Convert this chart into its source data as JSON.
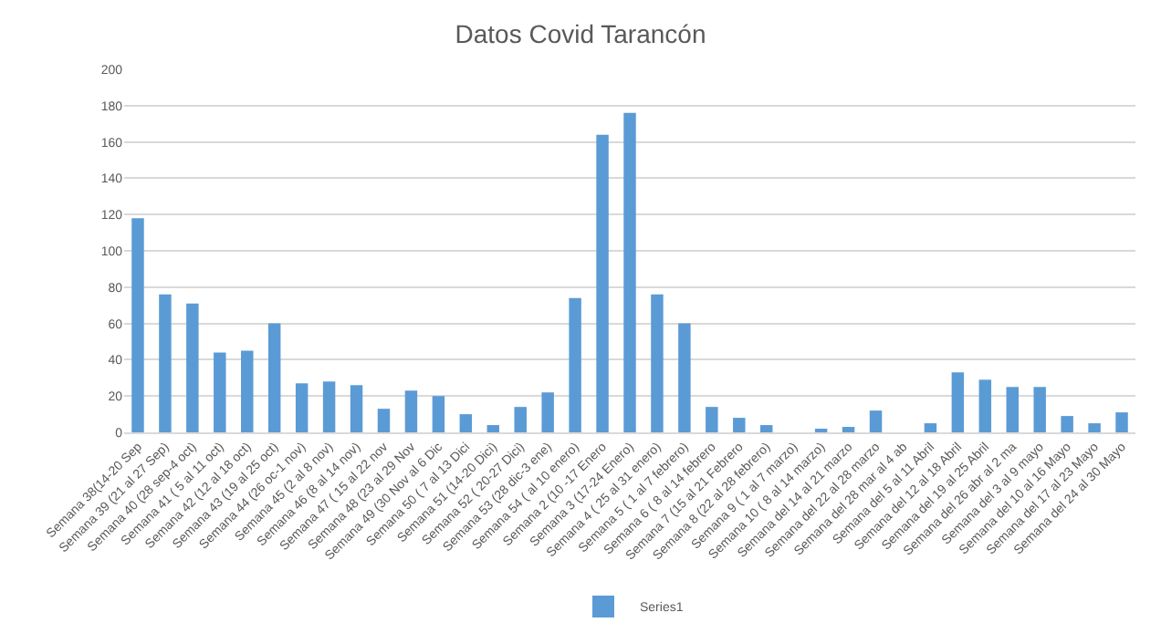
{
  "chart_data": {
    "type": "bar",
    "title": "Datos Covid Tarancón",
    "categories": [
      "Semana 38(14-20 Sep",
      "Semana 39 (21 al 27 Sep)",
      "Semana 40 (28 sep-4 oct)",
      "Semana 41 ( 5 al 11 oct)",
      "Semana 42 (12 al 18 oct)",
      "Semana 43 (19 al 25 oct)",
      "Semana 44 (26 oc-1 nov)",
      "Semana 45 (2 al 8 nov)",
      "Semana 46 (8 al 14 nov)",
      "Semana 47 ( 15 al 22 nov",
      "Semana 48 (23 al 29 Nov",
      "Semana 49 (30 Nov al 6 Dic",
      "Semana 50 ( 7 al 13 Dici",
      "Semana 51 (14-20 Dici)",
      "Semana 52 ( 20-27 Dici)",
      "Semana 53 (28 dic-3 ene)",
      "Semana 54 ( al 10 enero)",
      "Semana 2 (10 -17 Enero",
      "Semana 3 (17-24 Enero)",
      "Semana 4 ( 25 al 31 enero)",
      "Semana 5 ( 1 al 7 febrero)",
      "Semana 6 ( 8 al 14 febrero",
      "Semana 7 (15 al 21 Febrero",
      "Semana 8 (22 al 28 febrero)",
      "Semana 9 ( 1 al 7 marzo)",
      "Semana 10 ( 8 al 14 marzo)",
      "Semana del 14 al 21 marzo",
      "Semana del 22 al 28 marzo",
      "Semana del 28 mar al 4 ab",
      "Semana del 5 al 11 Abril",
      "Semana del 12 al 18 Abril",
      "Semana del 19 al 25 Abril",
      "Semana del 26 abr al 2 ma",
      "Semana del 3 al 9 mayo",
      "Semana del 10 al 16 Mayo",
      "Semana del 17 al 23 Mayo",
      "Semana del 24 al 30 Mayo"
    ],
    "series": [
      {
        "name": "Series1",
        "color": "#5b9bd5",
        "values": [
          118,
          76,
          71,
          44,
          45,
          60,
          27,
          28,
          26,
          13,
          23,
          20,
          10,
          4,
          14,
          22,
          74,
          164,
          176,
          76,
          60,
          14,
          8,
          4,
          0,
          2,
          3,
          12,
          0,
          5,
          33,
          29,
          25,
          25,
          9,
          5,
          11
        ]
      }
    ],
    "ylim": [
      0,
      200
    ],
    "yticks": [
      0,
      20,
      40,
      60,
      80,
      100,
      120,
      140,
      160,
      180,
      200
    ],
    "grid": "y",
    "legend": "bottom"
  }
}
